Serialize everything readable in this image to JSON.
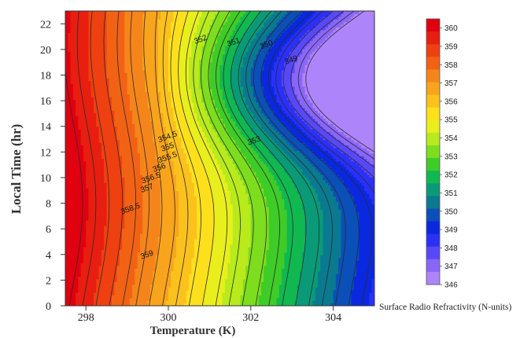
{
  "chart_data": {
    "type": "heatmap",
    "subtype": "filled-contour",
    "xlabel": "Temperature (K)",
    "ylabel": "Local Time (hr)",
    "colorbar_label": "Surface Radio Refractivity (N-units)",
    "xlim": [
      297.5,
      305
    ],
    "ylim": [
      0,
      23
    ],
    "xticks": [
      298,
      300,
      302,
      304
    ],
    "yticks": [
      0,
      2,
      4,
      6,
      8,
      10,
      12,
      14,
      16,
      18,
      20,
      22
    ],
    "colorbar_ticks": [
      360,
      359,
      358,
      357,
      356,
      355,
      354,
      353,
      352,
      351,
      350,
      349,
      348,
      347,
      346
    ],
    "colorbar_range": [
      346,
      360.5
    ],
    "colorbar_colors": [
      "#e00010",
      "#e81e10",
      "#ee4010",
      "#f26214",
      "#f5851a",
      "#f8a41c",
      "#fbc11c",
      "#fde01c",
      "#e8ef1c",
      "#b8ea1c",
      "#7ddd1e",
      "#3fcc28",
      "#10b850",
      "#0a9a78",
      "#0a7a90",
      "#0a50b8",
      "#0a28e0",
      "#2a30f8",
      "#5848f8",
      "#8a66f8",
      "#ae84fa"
    ],
    "contour_levels": [
      346.5,
      347,
      347.5,
      348,
      348.5,
      349,
      349.5,
      350,
      350.5,
      351,
      351.5,
      352,
      352.5,
      353,
      353.5,
      354,
      354.5,
      355,
      355.5,
      356,
      356.5,
      357,
      357.5,
      358,
      358.5,
      359,
      359.5,
      360
    ],
    "contour_labels": [
      {
        "x": 300.0,
        "y": 13.0,
        "text": "354.5"
      },
      {
        "x": 300.0,
        "y": 12.2,
        "text": "355"
      },
      {
        "x": 300.0,
        "y": 11.4,
        "text": "355.5"
      },
      {
        "x": 299.8,
        "y": 10.6,
        "text": "356"
      },
      {
        "x": 299.6,
        "y": 9.8,
        "text": "356.5"
      },
      {
        "x": 299.5,
        "y": 9.0,
        "text": "357"
      },
      {
        "x": 299.1,
        "y": 7.4,
        "text": "358.5"
      },
      {
        "x": 299.5,
        "y": 3.8,
        "text": "359"
      },
      {
        "x": 302.1,
        "y": 12.7,
        "text": "353"
      },
      {
        "x": 300.8,
        "y": 20.6,
        "text": "352"
      },
      {
        "x": 301.6,
        "y": 20.4,
        "text": "351"
      },
      {
        "x": 302.4,
        "y": 20.2,
        "text": "350"
      },
      {
        "x": 303.0,
        "y": 19.0,
        "text": "349"
      }
    ]
  }
}
